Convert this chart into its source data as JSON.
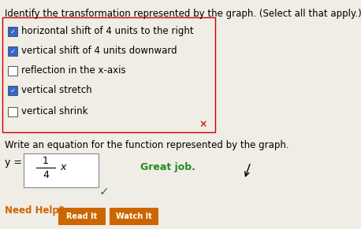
{
  "title": "Identify the transformation represented by the graph. (Select all that apply.)",
  "checkboxes": [
    {
      "label": "horizontal shift of 4 units to the right",
      "checked": true
    },
    {
      "label": "vertical shift of 4 units downward",
      "checked": true
    },
    {
      "label": "reflection in the x-axis",
      "checked": false
    },
    {
      "label": "vertical stretch",
      "checked": true
    },
    {
      "label": "vertical shrink",
      "checked": false
    }
  ],
  "checkbox_border_color": "#cc0000",
  "checkbox_check_color": "#2255bb",
  "checkbox_check_bg": "#3366cc",
  "x_mark_color": "#cc0000",
  "write_label": "Write an equation for the function represented by the graph.",
  "great_job_text": "Great job.",
  "great_job_color": "#228b22",
  "checkmark_color": "#228b22",
  "need_help_text": "Need Help?",
  "need_help_color": "#cc6600",
  "read_it_text": "Read It",
  "watch_it_text": "Watch It",
  "button_bg": "#cc6600",
  "button_text_color": "#ffffff",
  "bg_color": "#f0ece6",
  "title_fontsize": 8.5,
  "body_fontsize": 8.5
}
